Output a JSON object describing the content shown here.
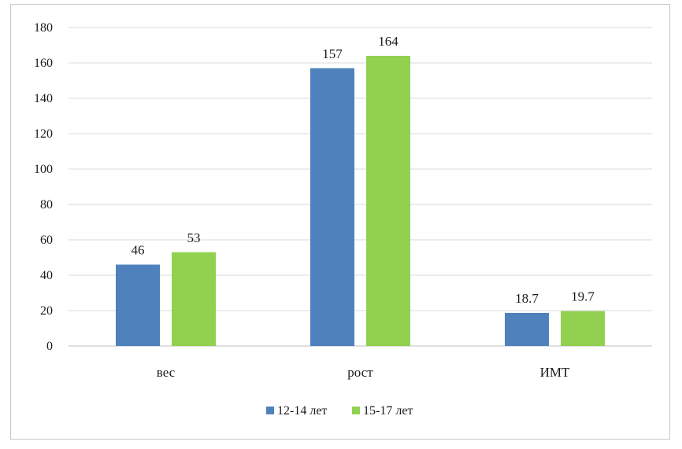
{
  "chart_data": {
    "type": "bar",
    "categories": [
      "вес",
      "рост",
      "ИМТ"
    ],
    "series": [
      {
        "name": "12-14 лет",
        "values": [
          46,
          157,
          18.7
        ],
        "labels": [
          "46",
          "157",
          "18.7"
        ],
        "color": "#4f81bd"
      },
      {
        "name": "15-17 лет",
        "values": [
          53,
          164,
          19.7
        ],
        "labels": [
          "53",
          "164",
          "19.7"
        ],
        "color": "#92d050"
      }
    ],
    "ylim": [
      0,
      180
    ],
    "yticks": [
      0,
      20,
      40,
      60,
      80,
      100,
      120,
      140,
      160,
      180
    ],
    "grid": true,
    "legend": "bottom",
    "title": "",
    "xlabel": "",
    "ylabel": ""
  }
}
